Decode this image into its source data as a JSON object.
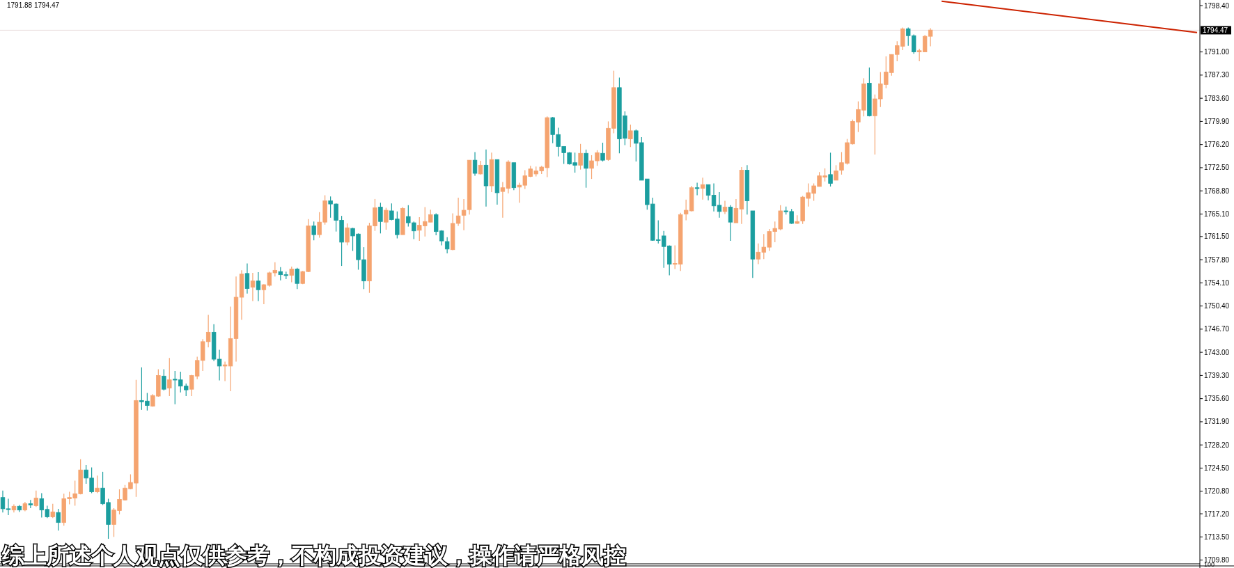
{
  "chart_data": {
    "type": "candlestick",
    "categories": [
      null,
      null,
      null,
      null,
      null,
      null,
      null,
      null,
      null,
      null,
      null,
      null,
      null,
      null,
      null,
      null,
      null,
      null,
      null,
      null,
      null,
      null,
      null,
      null,
      null,
      null,
      null,
      null,
      null,
      null,
      null,
      null,
      null,
      null,
      null,
      null,
      null,
      null,
      null,
      null,
      null,
      null,
      null,
      null,
      null,
      null,
      null,
      null,
      null,
      null,
      null,
      null,
      null,
      null,
      null,
      null,
      null,
      null,
      null,
      null,
      null,
      null,
      null,
      null,
      null,
      null,
      null,
      null,
      null,
      null,
      null,
      null,
      null,
      null,
      null,
      null,
      null,
      null,
      null,
      null,
      null,
      null,
      null,
      null,
      null,
      null,
      null,
      null,
      null,
      null,
      null,
      null,
      null,
      null,
      null,
      null,
      null,
      null,
      null,
      null,
      null,
      null,
      null,
      null,
      null,
      null,
      null,
      null,
      null,
      null,
      null,
      null,
      null,
      null,
      null,
      null,
      null,
      null,
      null,
      null,
      null,
      null,
      null,
      null,
      null,
      null,
      null,
      null,
      null,
      null,
      null,
      null,
      null,
      null,
      null,
      null,
      null,
      null,
      null,
      null,
      null,
      null,
      null,
      null,
      null,
      null,
      null,
      null,
      null,
      null,
      null,
      null,
      null,
      null,
      null,
      null,
      null,
      null,
      null,
      null,
      null,
      null,
      null,
      null,
      null,
      null,
      null,
      null,
      null,
      null,
      null,
      null,
      null,
      null,
      null,
      null,
      null,
      null,
      null,
      null,
      null,
      null,
      null,
      null,
      null,
      null,
      null,
      null,
      null,
      null,
      null,
      null,
      null,
      null,
      null,
      null,
      null,
      null,
      null,
      null,
      null,
      null,
      null,
      null,
      null,
      null,
      null,
      null,
      null,
      null,
      null,
      null,
      null,
      null,
      null,
      null
    ],
    "ohlc": [
      [
        1719.8,
        1720.9,
        1717.4,
        1718.0
      ],
      [
        1718.0,
        1719.6,
        1717.0,
        1717.9
      ],
      [
        1717.8,
        1718.7,
        1717.4,
        1718.4
      ],
      [
        1718.4,
        1718.6,
        1717.5,
        1717.8
      ],
      [
        1717.8,
        1719.1,
        1717.6,
        1718.8
      ],
      [
        1718.8,
        1719.4,
        1718.1,
        1718.6
      ],
      [
        1718.5,
        1720.9,
        1718.3,
        1719.7
      ],
      [
        1719.6,
        1720.5,
        1716.6,
        1717.8
      ],
      [
        1717.9,
        1718.5,
        1716.5,
        1716.7
      ],
      [
        1716.7,
        1718.8,
        1716.5,
        1717.5
      ],
      [
        1717.4,
        1718.0,
        1714.5,
        1715.8
      ],
      [
        1715.8,
        1720.4,
        1715.3,
        1719.6
      ],
      [
        1719.6,
        1720.7,
        1718.7,
        1719.8
      ],
      [
        1719.7,
        1722.5,
        1718.5,
        1720.4
      ],
      [
        1720.4,
        1725.9,
        1720.3,
        1724.2
      ],
      [
        1724.2,
        1725.0,
        1722.0,
        1722.9
      ],
      [
        1722.9,
        1724.6,
        1720.5,
        1720.7
      ],
      [
        1720.7,
        1723.3,
        1720.5,
        1721.3
      ],
      [
        1721.3,
        1723.9,
        1718.6,
        1718.8
      ],
      [
        1719.0,
        1719.6,
        1713.2,
        1715.5
      ],
      [
        1715.5,
        1718.1,
        1713.5,
        1717.8
      ],
      [
        1717.7,
        1721.1,
        1717.1,
        1719.5
      ],
      [
        1719.4,
        1721.8,
        1719.3,
        1721.3
      ],
      [
        1721.2,
        1723.5,
        1721.1,
        1722.2
      ],
      [
        1722.1,
        1738.6,
        1719.9,
        1735.3
      ],
      [
        1735.3,
        1740.6,
        1733.8,
        1735.1
      ],
      [
        1735.2,
        1736.5,
        1733.7,
        1734.5
      ],
      [
        1734.4,
        1736.3,
        1734.3,
        1736.1
      ],
      [
        1736.0,
        1740.3,
        1735.9,
        1739.3
      ],
      [
        1739.2,
        1740.3,
        1736.9,
        1737.1
      ],
      [
        1737.3,
        1742.1,
        1736.0,
        1738.6
      ],
      [
        1738.7,
        1740.0,
        1734.7,
        1738.6
      ],
      [
        1738.6,
        1739.9,
        1736.6,
        1737.6
      ],
      [
        1737.6,
        1738.0,
        1736.0,
        1737.0
      ],
      [
        1737.1,
        1739.4,
        1736.0,
        1739.3
      ],
      [
        1739.2,
        1742.3,
        1738.7,
        1741.7
      ],
      [
        1741.7,
        1745.1,
        1740.0,
        1744.7
      ],
      [
        1744.7,
        1749.0,
        1743.8,
        1746.2
      ],
      [
        1746.2,
        1747.5,
        1741.6,
        1741.9
      ],
      [
        1741.9,
        1743.4,
        1738.5,
        1740.8
      ],
      [
        1740.8,
        1741.5,
        1738.4,
        1741.0
      ],
      [
        1740.8,
        1750.3,
        1736.8,
        1745.2
      ],
      [
        1745.2,
        1755.1,
        1741.5,
        1751.8
      ],
      [
        1751.8,
        1756.1,
        1748.2,
        1755.5
      ],
      [
        1755.6,
        1757.2,
        1752.4,
        1753.2
      ],
      [
        1753.4,
        1755.7,
        1751.2,
        1754.4
      ],
      [
        1754.4,
        1755.8,
        1751.2,
        1753.0
      ],
      [
        1753.0,
        1753.9,
        1750.7,
        1753.8
      ],
      [
        1753.7,
        1755.9,
        1753.5,
        1755.7
      ],
      [
        1755.7,
        1757.4,
        1755.1,
        1756.1
      ],
      [
        1755.9,
        1756.6,
        1754.5,
        1755.4
      ],
      [
        1755.4,
        1755.9,
        1754.7,
        1755.3
      ],
      [
        1755.3,
        1756.7,
        1754.2,
        1756.3
      ],
      [
        1756.3,
        1756.5,
        1753.1,
        1754.0
      ],
      [
        1754.0,
        1756.0,
        1753.9,
        1755.9
      ],
      [
        1755.9,
        1764.3,
        1755.8,
        1763.2
      ],
      [
        1763.2,
        1763.9,
        1760.9,
        1761.8
      ],
      [
        1761.8,
        1765.4,
        1761.3,
        1763.8
      ],
      [
        1763.8,
        1768.1,
        1763.4,
        1767.2
      ],
      [
        1767.2,
        1767.9,
        1764.5,
        1766.7
      ],
      [
        1766.7,
        1766.8,
        1762.3,
        1764.1
      ],
      [
        1764.1,
        1764.8,
        1756.8,
        1760.6
      ],
      [
        1760.6,
        1763.6,
        1760.1,
        1762.9
      ],
      [
        1762.8,
        1762.9,
        1759.2,
        1761.6
      ],
      [
        1761.9,
        1762.0,
        1756.2,
        1757.8
      ],
      [
        1757.8,
        1759.8,
        1753.1,
        1754.4
      ],
      [
        1754.4,
        1763.7,
        1752.5,
        1763.2
      ],
      [
        1763.2,
        1767.5,
        1762.4,
        1766.1
      ],
      [
        1766.2,
        1766.9,
        1762.0,
        1763.9
      ],
      [
        1763.8,
        1766.1,
        1762.6,
        1765.7
      ],
      [
        1765.6,
        1766.8,
        1764.1,
        1764.2
      ],
      [
        1764.3,
        1765.5,
        1761.2,
        1761.8
      ],
      [
        1761.8,
        1766.2,
        1761.8,
        1766.0
      ],
      [
        1764.7,
        1766.5,
        1763.1,
        1763.7
      ],
      [
        1763.7,
        1763.9,
        1761.1,
        1762.4
      ],
      [
        1762.5,
        1764.6,
        1760.8,
        1763.3
      ],
      [
        1763.2,
        1766.2,
        1761.5,
        1763.9
      ],
      [
        1763.8,
        1765.8,
        1763.8,
        1765.0
      ],
      [
        1765.0,
        1765.2,
        1761.7,
        1762.3
      ],
      [
        1762.4,
        1762.5,
        1760.1,
        1760.8
      ],
      [
        1760.7,
        1761.4,
        1758.8,
        1759.5
      ],
      [
        1759.4,
        1765.2,
        1759.3,
        1763.6
      ],
      [
        1763.6,
        1767.7,
        1763.2,
        1764.8
      ],
      [
        1764.9,
        1767.5,
        1762.5,
        1765.7
      ],
      [
        1765.8,
        1773.7,
        1765.0,
        1773.7
      ],
      [
        1773.7,
        1775.0,
        1771.2,
        1771.6
      ],
      [
        1771.5,
        1773.6,
        1771.4,
        1772.9
      ],
      [
        1772.9,
        1775.4,
        1766.3,
        1769.6
      ],
      [
        1769.6,
        1774.9,
        1768.6,
        1773.8
      ],
      [
        1773.8,
        1773.8,
        1766.6,
        1768.5
      ],
      [
        1768.7,
        1770.2,
        1764.5,
        1769.3
      ],
      [
        1769.2,
        1773.7,
        1768.4,
        1773.4
      ],
      [
        1773.3,
        1773.3,
        1768.9,
        1769.3
      ],
      [
        1769.4,
        1770.1,
        1766.9,
        1769.7
      ],
      [
        1769.7,
        1772.1,
        1769.1,
        1771.2
      ],
      [
        1771.1,
        1772.8,
        1771.0,
        1772.3
      ],
      [
        1771.5,
        1772.7,
        1771.1,
        1772.0
      ],
      [
        1772.0,
        1772.8,
        1771.5,
        1772.6
      ],
      [
        1772.5,
        1780.7,
        1771.0,
        1780.5
      ],
      [
        1780.5,
        1780.6,
        1776.4,
        1777.8
      ],
      [
        1777.8,
        1778.9,
        1774.3,
        1775.9
      ],
      [
        1775.9,
        1775.9,
        1773.1,
        1774.9
      ],
      [
        1774.9,
        1775.0,
        1773.0,
        1773.1
      ],
      [
        1773.3,
        1774.9,
        1771.7,
        1772.9
      ],
      [
        1772.9,
        1776.3,
        1772.2,
        1774.8
      ],
      [
        1774.8,
        1775.4,
        1769.3,
        1772.4
      ],
      [
        1772.4,
        1774.5,
        1770.7,
        1773.6
      ],
      [
        1773.6,
        1775.3,
        1772.8,
        1774.9
      ],
      [
        1774.8,
        1776.5,
        1773.5,
        1773.7
      ],
      [
        1773.8,
        1779.9,
        1773.6,
        1778.8
      ],
      [
        1778.8,
        1788.0,
        1778.0,
        1785.3
      ],
      [
        1785.3,
        1786.9,
        1774.8,
        1777.1
      ],
      [
        1780.8,
        1781.5,
        1776.1,
        1777.2
      ],
      [
        1777.1,
        1779.4,
        1775.8,
        1778.4
      ],
      [
        1778.4,
        1778.6,
        1773.5,
        1776.4
      ],
      [
        1776.5,
        1777.4,
        1770.5,
        1770.5
      ],
      [
        1770.7,
        1770.7,
        1765.8,
        1766.6
      ],
      [
        1766.7,
        1767.7,
        1760.8,
        1760.9
      ],
      [
        1761.0,
        1764.1,
        1760.4,
        1760.9
      ],
      [
        1761.6,
        1762.4,
        1756.5,
        1759.9
      ],
      [
        1760.0,
        1760.1,
        1755.3,
        1757.1
      ],
      [
        1757.1,
        1760.1,
        1756.3,
        1757.2
      ],
      [
        1757.1,
        1765.3,
        1756.0,
        1765.0
      ],
      [
        1765.1,
        1767.4,
        1764.1,
        1765.7
      ],
      [
        1765.6,
        1769.6,
        1765.5,
        1769.3
      ],
      [
        1769.3,
        1770.1,
        1768.1,
        1769.2
      ],
      [
        1769.2,
        1770.9,
        1767.4,
        1769.8
      ],
      [
        1769.8,
        1769.8,
        1767.3,
        1768.1
      ],
      [
        1768.1,
        1770.0,
        1765.5,
        1766.4
      ],
      [
        1766.5,
        1768.6,
        1764.5,
        1765.5
      ],
      [
        1765.5,
        1767.2,
        1765.1,
        1766.2
      ],
      [
        1766.2,
        1766.5,
        1760.8,
        1763.8
      ],
      [
        1763.7,
        1767.5,
        1763.7,
        1766.0
      ],
      [
        1765.9,
        1772.6,
        1763.5,
        1772.1
      ],
      [
        1772.1,
        1772.9,
        1765.0,
        1767.2
      ],
      [
        1765.6,
        1765.6,
        1754.9,
        1757.9
      ],
      [
        1757.9,
        1760.4,
        1757.1,
        1759.0
      ],
      [
        1759.0,
        1761.9,
        1757.9,
        1759.8
      ],
      [
        1759.8,
        1762.7,
        1759.2,
        1762.3
      ],
      [
        1762.3,
        1763.9,
        1760.6,
        1762.8
      ],
      [
        1762.7,
        1766.5,
        1762.5,
        1765.6
      ],
      [
        1765.6,
        1766.3,
        1765.0,
        1765.5
      ],
      [
        1765.5,
        1765.9,
        1763.5,
        1763.6
      ],
      [
        1763.6,
        1764.9,
        1763.5,
        1763.9
      ],
      [
        1764.0,
        1768.0,
        1763.5,
        1767.8
      ],
      [
        1767.6,
        1770.0,
        1766.3,
        1768.5
      ],
      [
        1768.4,
        1770.0,
        1767.2,
        1769.6
      ],
      [
        1769.5,
        1771.8,
        1769.5,
        1771.2
      ],
      [
        1771.0,
        1772.4,
        1770.3,
        1771.2
      ],
      [
        1771.4,
        1774.9,
        1769.5,
        1770.0
      ],
      [
        1770.5,
        1772.9,
        1770.5,
        1772.0
      ],
      [
        1772.1,
        1775.0,
        1771.4,
        1773.3
      ],
      [
        1773.2,
        1777.1,
        1773.0,
        1776.5
      ],
      [
        1776.3,
        1780.2,
        1776.2,
        1779.9
      ],
      [
        1779.8,
        1783.1,
        1778.2,
        1781.8
      ],
      [
        1781.7,
        1786.8,
        1780.7,
        1785.9
      ],
      [
        1786.0,
        1788.5,
        1780.7,
        1780.8
      ],
      [
        1780.8,
        1784.2,
        1774.6,
        1783.5
      ],
      [
        1783.5,
        1787.8,
        1782.2,
        1785.9
      ],
      [
        1785.8,
        1790.3,
        1785.2,
        1787.8
      ],
      [
        1787.7,
        1790.6,
        1787.2,
        1790.6
      ],
      [
        1790.6,
        1792.7,
        1789.5,
        1792.0
      ],
      [
        1791.9,
        1794.9,
        1791.3,
        1794.7
      ],
      [
        1794.7,
        1794.9,
        1792.0,
        1793.6
      ],
      [
        1793.6,
        1793.8,
        1790.7,
        1791.0
      ],
      [
        1791.0,
        1791.5,
        1789.5,
        1791.2
      ],
      [
        1791.0,
        1793.7,
        1791.0,
        1793.5
      ],
      [
        1793.5,
        1794.8,
        1791.9,
        1794.5
      ],
      null,
      null,
      null,
      null,
      null,
      null,
      null,
      null,
      null,
      null,
      null,
      null,
      null,
      null,
      null,
      null,
      null,
      null,
      null,
      null,
      null,
      null,
      null,
      null,
      null,
      null,
      null,
      null,
      null,
      null,
      null,
      null,
      null,
      null,
      null,
      null,
      null,
      null,
      null,
      null,
      null,
      null,
      null,
      null,
      null,
      null,
      null,
      null
    ],
    "colors": [
      "#1b9e9f",
      "#1b9e9f",
      "#f5a470",
      "#1b9e9f",
      "#f5a470",
      "#1b9e9f",
      "#f5a470",
      "#1b9e9f",
      "#1b9e9f",
      "#f5a470",
      "#1b9e9f",
      "#f5a470",
      "#f5a470",
      "#f5a470",
      "#f5a470",
      "#1b9e9f",
      "#1b9e9f",
      "#f5a470",
      "#1b9e9f",
      "#1b9e9f",
      "#f5a470",
      "#f5a470",
      "#f5a470",
      "#f5a470",
      "#f5a470",
      "#1b9e9f",
      "#1b9e9f",
      "#f5a470",
      "#f5a470",
      "#1b9e9f",
      "#f5a470",
      "#1b9e9f",
      "#1b9e9f",
      "#1b9e9f",
      "#f5a470",
      "#f5a470",
      "#f5a470",
      "#f5a470",
      "#1b9e9f",
      "#1b9e9f",
      "#f5a470",
      "#f5a470",
      "#f5a470",
      "#f5a470",
      "#1b9e9f",
      "#f5a470",
      "#1b9e9f",
      "#f5a470",
      "#f5a470",
      "#f5a470",
      "#1b9e9f",
      "#1b9e9f",
      "#f5a470",
      "#1b9e9f",
      "#f5a470",
      "#f5a470",
      "#1b9e9f",
      "#f5a470",
      "#f5a470",
      "#1b9e9f",
      "#1b9e9f",
      "#1b9e9f",
      "#f5a470",
      "#1b9e9f",
      "#1b9e9f",
      "#1b9e9f",
      "#f5a470",
      "#f5a470",
      "#1b9e9f",
      "#f5a470",
      "#1b9e9f",
      "#1b9e9f",
      "#f5a470",
      "#1b9e9f",
      "#1b9e9f",
      "#f5a470",
      "#f5a470",
      "#f5a470",
      "#1b9e9f",
      "#1b9e9f",
      "#1b9e9f",
      "#f5a470",
      "#f5a470",
      "#f5a470",
      "#f5a470",
      "#1b9e9f",
      "#f5a470",
      "#1b9e9f",
      "#f5a470",
      "#1b9e9f",
      "#f5a470",
      "#f5a470",
      "#1b9e9f",
      "#f5a470",
      "#f5a470",
      "#f5a470",
      "#f5a470",
      "#f5a470",
      "#f5a470",
      "#1b9e9f",
      "#1b9e9f",
      "#1b9e9f",
      "#1b9e9f",
      "#1b9e9f",
      "#f5a470",
      "#1b9e9f",
      "#f5a470",
      "#f5a470",
      "#1b9e9f",
      "#f5a470",
      "#f5a470",
      "#1b9e9f",
      "#1b9e9f",
      "#f5a470",
      "#1b9e9f",
      "#1b9e9f",
      "#1b9e9f",
      "#1b9e9f",
      "#1b9e9f",
      "#1b9e9f",
      "#1b9e9f",
      "#f5a470",
      "#f5a470",
      "#f5a470",
      "#f5a470",
      "#1b9e9f",
      "#f5a470",
      "#1b9e9f",
      "#1b9e9f",
      "#1b9e9f",
      "#f5a470",
      "#1b9e9f",
      "#f5a470",
      "#f5a470",
      "#1b9e9f",
      "#1b9e9f",
      "#f5a470",
      "#f5a470",
      "#f5a470",
      "#f5a470",
      "#f5a470",
      "#1b9e9f",
      "#1b9e9f",
      "#f5a470",
      "#f5a470",
      "#f5a470",
      "#f5a470",
      "#f5a470",
      "#f5a470",
      "#1b9e9f",
      "#f5a470",
      "#f5a470",
      "#f5a470",
      "#f5a470",
      "#f5a470",
      "#f5a470",
      "#1b9e9f",
      "#f5a470",
      "#f5a470",
      "#f5a470",
      "#f5a470",
      "#f5a470",
      "#f5a470",
      "#1b9e9f",
      "#1b9e9f",
      "#f5a470",
      "#f5a470",
      "#f5a470",
      null,
      null,
      null,
      null,
      null,
      null,
      null,
      null,
      null,
      null,
      null,
      null,
      null,
      null,
      null,
      null,
      null,
      null,
      null,
      null,
      null,
      null,
      null,
      null,
      null,
      null,
      null,
      null,
      null,
      null,
      null,
      null,
      null,
      null,
      null,
      null,
      null,
      null,
      null,
      null,
      null,
      null,
      null,
      null,
      null,
      null,
      null,
      null
    ],
    "series": [
      {
        "type": "line",
        "color": "#cc2200",
        "values": [
          null,
          null,
          null,
          null,
          null,
          null,
          null,
          null,
          null,
          null,
          null,
          null,
          null,
          null,
          null,
          null,
          null,
          null,
          null,
          null,
          null,
          null,
          null,
          null,
          null,
          null,
          null,
          null,
          null,
          null,
          null,
          null,
          null,
          null,
          null,
          null,
          null,
          null,
          null,
          null,
          null,
          null,
          null,
          null,
          null,
          null,
          null,
          null,
          null,
          null,
          null,
          null,
          null,
          null,
          null,
          null,
          null,
          null,
          null,
          null,
          null,
          null,
          null,
          null,
          null,
          null,
          null,
          null,
          null,
          null,
          null,
          null,
          null,
          null,
          null,
          null,
          null,
          null,
          null,
          null,
          null,
          null,
          null,
          null,
          null,
          null,
          null,
          null,
          null,
          null,
          null,
          null,
          null,
          null,
          null,
          null,
          null,
          null,
          null,
          null,
          null,
          null,
          null,
          null,
          null,
          null,
          null,
          null,
          null,
          null,
          null,
          null,
          null,
          null,
          null,
          null,
          null,
          null,
          null,
          null,
          null,
          null,
          null,
          null,
          null,
          null,
          null,
          null,
          null,
          null,
          null,
          null,
          null,
          null,
          null,
          null,
          null,
          null,
          null,
          null,
          null,
          null,
          null,
          null,
          null,
          null,
          null,
          null,
          null,
          null,
          null,
          null,
          null,
          null,
          null,
          null,
          null,
          null,
          null,
          null,
          null,
          null,
          null,
          null,
          null,
          null,
          null,
          null,
          null,
          1799.1,
          null,
          null,
          null,
          null,
          null,
          null,
          null,
          null,
          null,
          null,
          null,
          null,
          null,
          null,
          null,
          null,
          null,
          null,
          null,
          null,
          null,
          null,
          null,
          null,
          null,
          null,
          null,
          null,
          null,
          null,
          null,
          null,
          null,
          null,
          null,
          null,
          null,
          null,
          null,
          null,
          null,
          null,
          null,
          null,
          null,
          1794.1
        ]
      }
    ],
    "ylim": [
      1709.2,
      1799.3
    ],
    "yticks": [
      {
        "value": 1798.4,
        "label": "1798.40"
      },
      {
        "value": 1791.0,
        "label": "1791.00"
      },
      {
        "value": 1787.3,
        "label": "1787.30"
      },
      {
        "value": 1783.6,
        "label": "1783.60"
      },
      {
        "value": 1779.9,
        "label": "1779.90"
      },
      {
        "value": 1776.2,
        "label": "1776.20"
      },
      {
        "value": 1772.5,
        "label": "1772.50"
      },
      {
        "value": 1768.8,
        "label": "1768.80"
      },
      {
        "value": 1765.1,
        "label": "1765.10"
      },
      {
        "value": 1761.5,
        "label": "1761.50"
      },
      {
        "value": 1757.8,
        "label": "1757.80"
      },
      {
        "value": 1754.1,
        "label": "1754.10"
      },
      {
        "value": 1750.4,
        "label": "1750.40"
      },
      {
        "value": 1746.7,
        "label": "1746.70"
      },
      {
        "value": 1743.0,
        "label": "1743.00"
      },
      {
        "value": 1739.3,
        "label": "1739.30"
      },
      {
        "value": 1735.6,
        "label": "1735.60"
      },
      {
        "value": 1731.9,
        "label": "1731.90"
      },
      {
        "value": 1728.2,
        "label": "1728.20"
      },
      {
        "value": 1724.5,
        "label": "1724.50"
      },
      {
        "value": 1720.8,
        "label": "1720.80"
      },
      {
        "value": 1717.2,
        "label": "1717.20"
      },
      {
        "value": 1713.5,
        "label": "1713.50"
      },
      {
        "value": 1709.8,
        "label": "1709.80"
      }
    ],
    "ref_lines": [
      {
        "axis": "y",
        "value": 1794.47,
        "label": "1794.47",
        "color": "#e8dcdc"
      }
    ],
    "tick_labels": "y",
    "annotations": [
      "1791.88 1794.47",
      "综上所述个人观点仅供参考，不构成投资建议，操作请严格风控",
      "100"
    ]
  }
}
